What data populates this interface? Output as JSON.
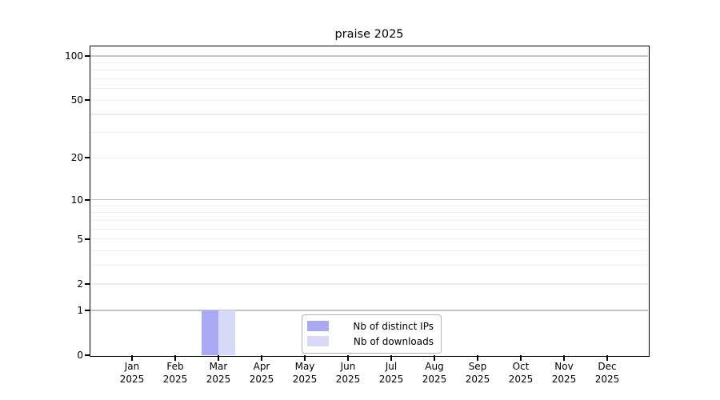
{
  "title": "praise 2025",
  "legend": {
    "entries": [
      {
        "label": "Nb of distinct IPs",
        "color": "#a8a8f5"
      },
      {
        "label": "Nb of downloads",
        "color": "#d8d8f7"
      }
    ]
  },
  "axes": {
    "y_ticks": [
      {
        "label": "100",
        "value": 100
      },
      {
        "label": "50",
        "value": 50
      },
      {
        "label": "20",
        "value": 20
      },
      {
        "label": "10",
        "value": 10
      },
      {
        "label": "5",
        "value": 5
      },
      {
        "label": "2",
        "value": 2
      },
      {
        "label": "1",
        "value": 1
      },
      {
        "label": "0",
        "value": 0
      }
    ],
    "y_major_gridline_values": [
      1,
      10,
      100
    ],
    "y_minor_gridline_values": [
      2,
      3,
      4,
      5,
      6,
      7,
      8,
      9,
      20,
      30,
      40,
      50,
      60,
      70,
      80,
      90
    ],
    "x_tick_months": [
      "Jan",
      "Feb",
      "Mar",
      "Apr",
      "May",
      "Jun",
      "Jul",
      "Aug",
      "Sep",
      "Oct",
      "Nov",
      "Dec"
    ],
    "x_tick_year": "2025"
  },
  "chart_data": {
    "type": "bar",
    "title": "praise 2025",
    "categories": [
      "Jan 2025",
      "Feb 2025",
      "Mar 2025",
      "Apr 2025",
      "May 2025",
      "Jun 2025",
      "Jul 2025",
      "Aug 2025",
      "Sep 2025",
      "Oct 2025",
      "Nov 2025",
      "Dec 2025"
    ],
    "series": [
      {
        "name": "Nb of distinct IPs",
        "color": "#a8a8f5",
        "values": [
          0,
          0,
          1,
          0,
          0,
          0,
          0,
          0,
          0,
          0,
          0,
          0
        ]
      },
      {
        "name": "Nb of downloads",
        "color": "#d8d8f7",
        "values": [
          0,
          0,
          1,
          0,
          0,
          0,
          0,
          0,
          0,
          0,
          0,
          0
        ]
      }
    ],
    "xlabel": "",
    "ylabel": "",
    "yscale": "log1p",
    "ylim": [
      0,
      116
    ],
    "y_tick_values": [
      0,
      1,
      2,
      5,
      10,
      20,
      50,
      100
    ],
    "grid": "horizontal major+minor",
    "legend_position": "lower center inside plot"
  },
  "colors": {
    "background": "#ffffff",
    "axis": "#000000",
    "text": "#000000",
    "major_grid": "#c3c3c3",
    "minor_grid": "#ececec",
    "legend_border": "#b3b3b3"
  }
}
